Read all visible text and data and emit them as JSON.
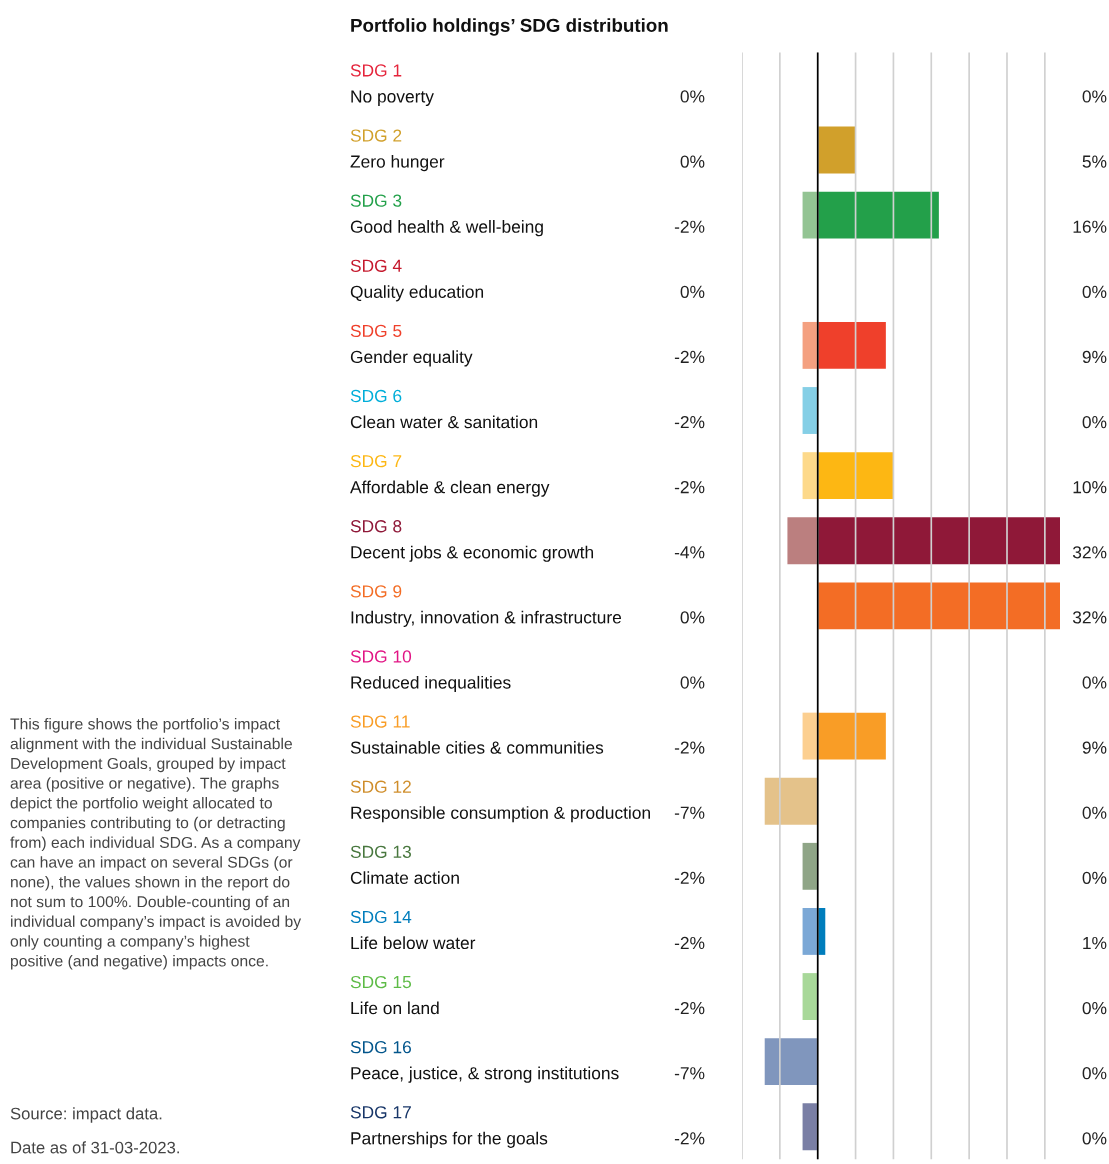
{
  "chart_data": {
    "type": "bar",
    "orientation": "horizontal",
    "title": "Portfolio holdings’ SDG distribution",
    "categories": [
      "SDG 1\nNo poverty",
      "SDG 2\nZero hunger",
      "SDG 3\nGood health & well-being",
      "SDG 4\nQuality education",
      "SDG 5\nGender equality",
      "SDG 6\nClean water & sanitation",
      "SDG 7\nAffordable & clean energy",
      "SDG 8\nDecent jobs & economic growth",
      "SDG 9\nIndustry, innovation & infrastructure",
      "SDG 10\nReduced inequalities",
      "SDG 11\nSustainable cities & communities",
      "SDG 12\nResponsible consumption & production",
      "SDG 13\nClimate action",
      "SDG 14\nLife below water",
      "SDG 15\nLife on land",
      "SDG 16\nPeace, justice, & strong institutions",
      "SDG 17\nPartnerships for the goals"
    ],
    "series": [
      {
        "values": [
          0,
          0,
          -2,
          0,
          -2,
          -2,
          -2,
          -4,
          0,
          0,
          -2,
          -7,
          -2,
          -2,
          -2,
          -7,
          -2
        ],
        "colors": [
          "#f2919d",
          "#e8cf94",
          "#93c493",
          "#e28c96",
          "#f4a080",
          "#85cfe6",
          "#fdd98a",
          "#bb7f7f",
          "#f9b692",
          "#f089c1",
          "#fccf90",
          "#e4c28a",
          "#8fa587",
          "#7ba8d6",
          "#a8d899",
          "#8096bd",
          "#7a7fa5"
        ],
        "value_labels": [
          "0%",
          "0%",
          "-2%",
          "0%",
          "-2%",
          "-2%",
          "-2%",
          "-4%",
          "0%",
          "0%",
          "-2%",
          "-7%",
          "-2%",
          "-2%",
          "-2%",
          "-7%",
          "-2%"
        ]
      },
      {
        "values": [
          0,
          5,
          16,
          0,
          9,
          0,
          10,
          32,
          32,
          0,
          9,
          0,
          0,
          1,
          0,
          0,
          0
        ],
        "colors": [
          "#e5243b",
          "#d1a02b",
          "#23a04a",
          "#c5192d",
          "#ef402b",
          "#00aed9",
          "#fdb713",
          "#8f1838",
          "#f36d25",
          "#e11484",
          "#f99d26",
          "#cf8d2a",
          "#48773e",
          "#007dbc",
          "#5dbb46",
          "#02558b",
          "#183668"
        ],
        "value_labels": [
          "0%",
          "5%",
          "16%",
          "0%",
          "9%",
          "0%",
          "10%",
          "32%",
          "32%",
          "0%",
          "9%",
          "0%",
          "0%",
          "1%",
          "0%",
          "0%",
          "0%"
        ]
      }
    ],
    "xlim": [
      -10,
      32
    ],
    "xticks": [
      {
        "value": -10,
        "label": null
      },
      {
        "value": -5,
        "label": null
      },
      {
        "value": 0,
        "label": null
      },
      {
        "value": 5,
        "label": null
      },
      {
        "value": 10,
        "label": null
      },
      {
        "value": 15,
        "label": null
      },
      {
        "value": 20,
        "label": null
      },
      {
        "value": 25,
        "label": null
      },
      {
        "value": 30,
        "label": null
      }
    ],
    "grid": "x",
    "ref_lines": [
      {
        "axis": "x",
        "value": 0,
        "color": "#000000"
      }
    ],
    "annotations": [
      "This figure shows the portfolio’s impact\nalignment with the individual Sustainable\nDevelopment Goals, grouped by impact\narea (positive or negative). The graphs\ndepict the portfolio weight allocated to\ncompanies contributing to (or detracting\nfrom) each individual SDG. As a company\ncan have an impact on several SDGs (or\nnone), the values shown in the report do\nnot sum to 100%. Double-counting of an\nindividual company’s impact is avoided by\nonly counting a company’s highest\npositive (and negative) impacts once.",
      "Source: impact data.",
      "Date as of 31-03-2023."
    ]
  }
}
